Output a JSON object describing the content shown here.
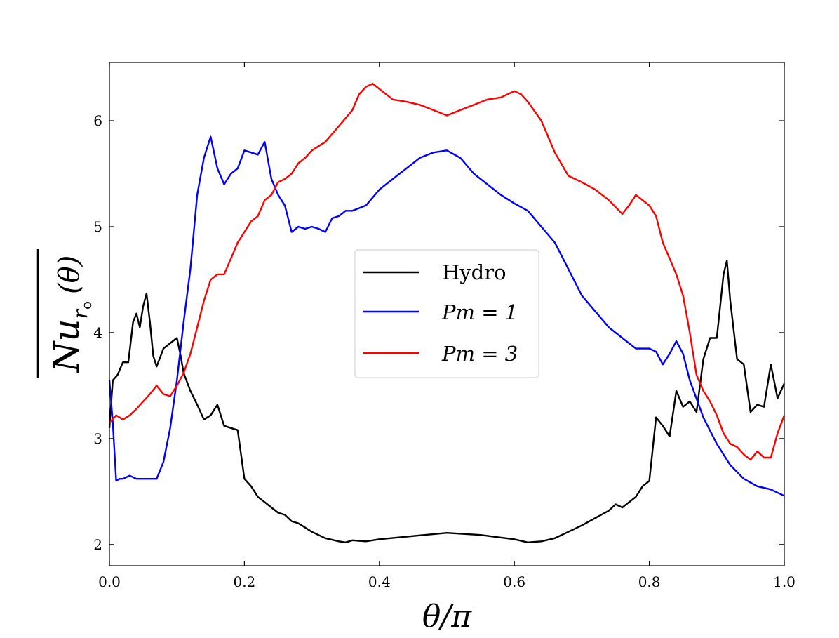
{
  "chart_data": {
    "type": "line",
    "xlabel": "θ/π",
    "ylabel": {
      "main": "Nu",
      "sub": "r",
      "subsub": "o",
      "arg": "(θ)"
    },
    "xlim": [
      0.0,
      1.0
    ],
    "ylim": [
      1.8,
      6.55
    ],
    "xticks": [
      "0.0",
      "0.2",
      "0.4",
      "0.6",
      "0.8",
      "1.0"
    ],
    "yticks": [
      "2",
      "3",
      "4",
      "5",
      "6"
    ],
    "grid": false,
    "legend_position": "center",
    "series": [
      {
        "name": "Hydro",
        "color": "#000000",
        "x": [
          0.0,
          0.005,
          0.012,
          0.02,
          0.028,
          0.035,
          0.04,
          0.045,
          0.05,
          0.055,
          0.06,
          0.065,
          0.07,
          0.08,
          0.09,
          0.1,
          0.105,
          0.11,
          0.12,
          0.13,
          0.14,
          0.15,
          0.16,
          0.17,
          0.18,
          0.19,
          0.2,
          0.21,
          0.22,
          0.23,
          0.24,
          0.25,
          0.26,
          0.27,
          0.28,
          0.3,
          0.32,
          0.34,
          0.35,
          0.36,
          0.38,
          0.4,
          0.45,
          0.5,
          0.55,
          0.6,
          0.62,
          0.64,
          0.66,
          0.68,
          0.7,
          0.72,
          0.74,
          0.75,
          0.76,
          0.78,
          0.79,
          0.8,
          0.81,
          0.82,
          0.83,
          0.84,
          0.85,
          0.86,
          0.87,
          0.88,
          0.89,
          0.9,
          0.91,
          0.915,
          0.92,
          0.93,
          0.94,
          0.95,
          0.96,
          0.97,
          0.98,
          0.99,
          1.0
        ],
        "y": [
          3.1,
          3.55,
          3.6,
          3.72,
          3.72,
          4.1,
          4.18,
          4.05,
          4.25,
          4.37,
          4.1,
          3.78,
          3.68,
          3.85,
          3.9,
          3.95,
          3.8,
          3.62,
          3.45,
          3.32,
          3.18,
          3.22,
          3.32,
          3.12,
          3.1,
          3.08,
          2.62,
          2.55,
          2.45,
          2.4,
          2.35,
          2.3,
          2.28,
          2.22,
          2.2,
          2.12,
          2.06,
          2.03,
          2.02,
          2.04,
          2.03,
          2.05,
          2.08,
          2.11,
          2.09,
          2.05,
          2.02,
          2.03,
          2.06,
          2.12,
          2.18,
          2.25,
          2.32,
          2.38,
          2.35,
          2.45,
          2.55,
          2.6,
          3.2,
          3.12,
          3.02,
          3.45,
          3.3,
          3.35,
          3.25,
          3.75,
          3.95,
          3.95,
          4.55,
          4.68,
          4.3,
          3.75,
          3.7,
          3.25,
          3.32,
          3.3,
          3.7,
          3.38,
          3.52
        ]
      },
      {
        "name": "Pm = 1",
        "color": "#0000ff",
        "x": [
          0.0,
          0.005,
          0.01,
          0.015,
          0.02,
          0.03,
          0.04,
          0.05,
          0.06,
          0.07,
          0.08,
          0.09,
          0.1,
          0.11,
          0.12,
          0.13,
          0.14,
          0.15,
          0.16,
          0.17,
          0.18,
          0.19,
          0.2,
          0.21,
          0.22,
          0.23,
          0.24,
          0.25,
          0.26,
          0.27,
          0.28,
          0.29,
          0.3,
          0.31,
          0.32,
          0.33,
          0.34,
          0.35,
          0.36,
          0.38,
          0.4,
          0.42,
          0.44,
          0.46,
          0.48,
          0.5,
          0.52,
          0.54,
          0.56,
          0.58,
          0.6,
          0.62,
          0.64,
          0.66,
          0.68,
          0.7,
          0.72,
          0.74,
          0.76,
          0.78,
          0.8,
          0.81,
          0.82,
          0.83,
          0.84,
          0.85,
          0.86,
          0.88,
          0.9,
          0.92,
          0.94,
          0.96,
          0.98,
          1.0
        ],
        "y": [
          3.55,
          3.15,
          2.6,
          2.62,
          2.62,
          2.65,
          2.62,
          2.62,
          2.62,
          2.62,
          2.78,
          3.1,
          3.55,
          4.1,
          4.6,
          5.3,
          5.65,
          5.85,
          5.55,
          5.4,
          5.5,
          5.55,
          5.72,
          5.7,
          5.68,
          5.8,
          5.45,
          5.3,
          5.2,
          4.95,
          5.0,
          4.98,
          5.0,
          4.98,
          4.95,
          5.08,
          5.1,
          5.15,
          5.15,
          5.2,
          5.35,
          5.45,
          5.55,
          5.65,
          5.7,
          5.72,
          5.65,
          5.5,
          5.4,
          5.3,
          5.22,
          5.15,
          5.0,
          4.85,
          4.6,
          4.35,
          4.2,
          4.05,
          3.95,
          3.85,
          3.85,
          3.82,
          3.7,
          3.8,
          3.92,
          3.8,
          3.55,
          3.2,
          2.95,
          2.75,
          2.62,
          2.55,
          2.52,
          2.46
        ]
      },
      {
        "name": "Pm = 3",
        "color": "#ff0000",
        "x": [
          0.0,
          0.01,
          0.02,
          0.03,
          0.04,
          0.05,
          0.06,
          0.07,
          0.08,
          0.09,
          0.1,
          0.11,
          0.12,
          0.13,
          0.14,
          0.15,
          0.16,
          0.17,
          0.18,
          0.19,
          0.2,
          0.21,
          0.22,
          0.23,
          0.24,
          0.25,
          0.26,
          0.27,
          0.28,
          0.29,
          0.3,
          0.32,
          0.34,
          0.36,
          0.37,
          0.38,
          0.39,
          0.4,
          0.42,
          0.44,
          0.46,
          0.48,
          0.5,
          0.52,
          0.54,
          0.56,
          0.58,
          0.6,
          0.61,
          0.62,
          0.64,
          0.66,
          0.68,
          0.7,
          0.72,
          0.74,
          0.76,
          0.77,
          0.78,
          0.79,
          0.8,
          0.81,
          0.82,
          0.83,
          0.84,
          0.85,
          0.86,
          0.87,
          0.88,
          0.89,
          0.9,
          0.91,
          0.92,
          0.93,
          0.94,
          0.95,
          0.96,
          0.97,
          0.98,
          0.99,
          1.0
        ],
        "y": [
          3.15,
          3.22,
          3.18,
          3.22,
          3.28,
          3.35,
          3.42,
          3.5,
          3.42,
          3.4,
          3.5,
          3.62,
          3.8,
          4.05,
          4.3,
          4.5,
          4.55,
          4.55,
          4.7,
          4.85,
          4.95,
          5.05,
          5.1,
          5.25,
          5.3,
          5.42,
          5.45,
          5.5,
          5.6,
          5.65,
          5.72,
          5.8,
          5.95,
          6.1,
          6.25,
          6.32,
          6.35,
          6.3,
          6.2,
          6.18,
          6.15,
          6.1,
          6.05,
          6.1,
          6.15,
          6.2,
          6.22,
          6.28,
          6.25,
          6.18,
          6.0,
          5.7,
          5.48,
          5.42,
          5.35,
          5.25,
          5.12,
          5.2,
          5.3,
          5.25,
          5.2,
          5.1,
          4.85,
          4.7,
          4.55,
          4.35,
          4.0,
          3.6,
          3.45,
          3.35,
          3.22,
          3.05,
          2.95,
          2.92,
          2.85,
          2.8,
          2.88,
          2.82,
          2.82,
          3.05,
          3.22
        ]
      }
    ]
  }
}
